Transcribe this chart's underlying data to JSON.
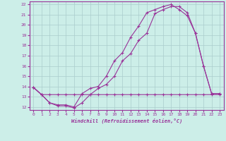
{
  "background_color": "#cceee8",
  "grid_color": "#aacccc",
  "line_color": "#993399",
  "xlim": [
    -0.5,
    23.5
  ],
  "ylim": [
    11.7,
    22.3
  ],
  "yticks": [
    12,
    13,
    14,
    15,
    16,
    17,
    18,
    19,
    20,
    21,
    22
  ],
  "xticks": [
    0,
    1,
    2,
    3,
    4,
    5,
    6,
    7,
    8,
    9,
    10,
    11,
    12,
    13,
    14,
    15,
    16,
    17,
    18,
    19,
    20,
    21,
    22,
    23
  ],
  "xlabel": "Windchill (Refroidissement éolien,°C)",
  "line1_x": [
    0,
    1,
    2,
    3,
    4,
    5,
    6,
    7,
    8,
    9,
    10,
    11,
    12,
    13,
    14,
    15,
    16,
    17,
    18,
    19,
    20,
    21,
    22,
    23
  ],
  "line1_y": [
    13.9,
    13.2,
    13.2,
    13.2,
    13.2,
    13.2,
    13.2,
    13.2,
    13.2,
    13.2,
    13.2,
    13.2,
    13.2,
    13.2,
    13.2,
    13.2,
    13.2,
    13.2,
    13.2,
    13.2,
    13.2,
    13.2,
    13.2,
    13.2
  ],
  "line2_x": [
    0,
    1,
    2,
    3,
    4,
    5,
    6,
    7,
    8,
    9,
    10,
    11,
    12,
    13,
    14,
    15,
    16,
    17,
    18,
    19,
    20,
    21,
    22,
    23
  ],
  "line2_y": [
    13.9,
    13.2,
    12.4,
    12.1,
    12.1,
    11.9,
    12.4,
    13.2,
    13.8,
    14.2,
    15.0,
    16.5,
    17.2,
    18.5,
    19.2,
    21.1,
    21.5,
    21.8,
    21.8,
    21.2,
    19.2,
    16.0,
    13.3,
    13.3
  ],
  "line3_x": [
    0,
    1,
    2,
    3,
    4,
    5,
    6,
    7,
    8,
    9,
    10,
    11,
    12,
    13,
    14,
    15,
    16,
    17,
    18,
    19,
    20,
    21,
    22,
    23
  ],
  "line3_y": [
    13.9,
    13.2,
    12.4,
    12.2,
    12.2,
    12.0,
    13.3,
    13.8,
    14.0,
    15.0,
    16.5,
    17.3,
    18.8,
    19.9,
    21.2,
    21.5,
    21.8,
    22.0,
    21.5,
    20.9,
    19.2,
    16.0,
    13.3,
    13.3
  ]
}
